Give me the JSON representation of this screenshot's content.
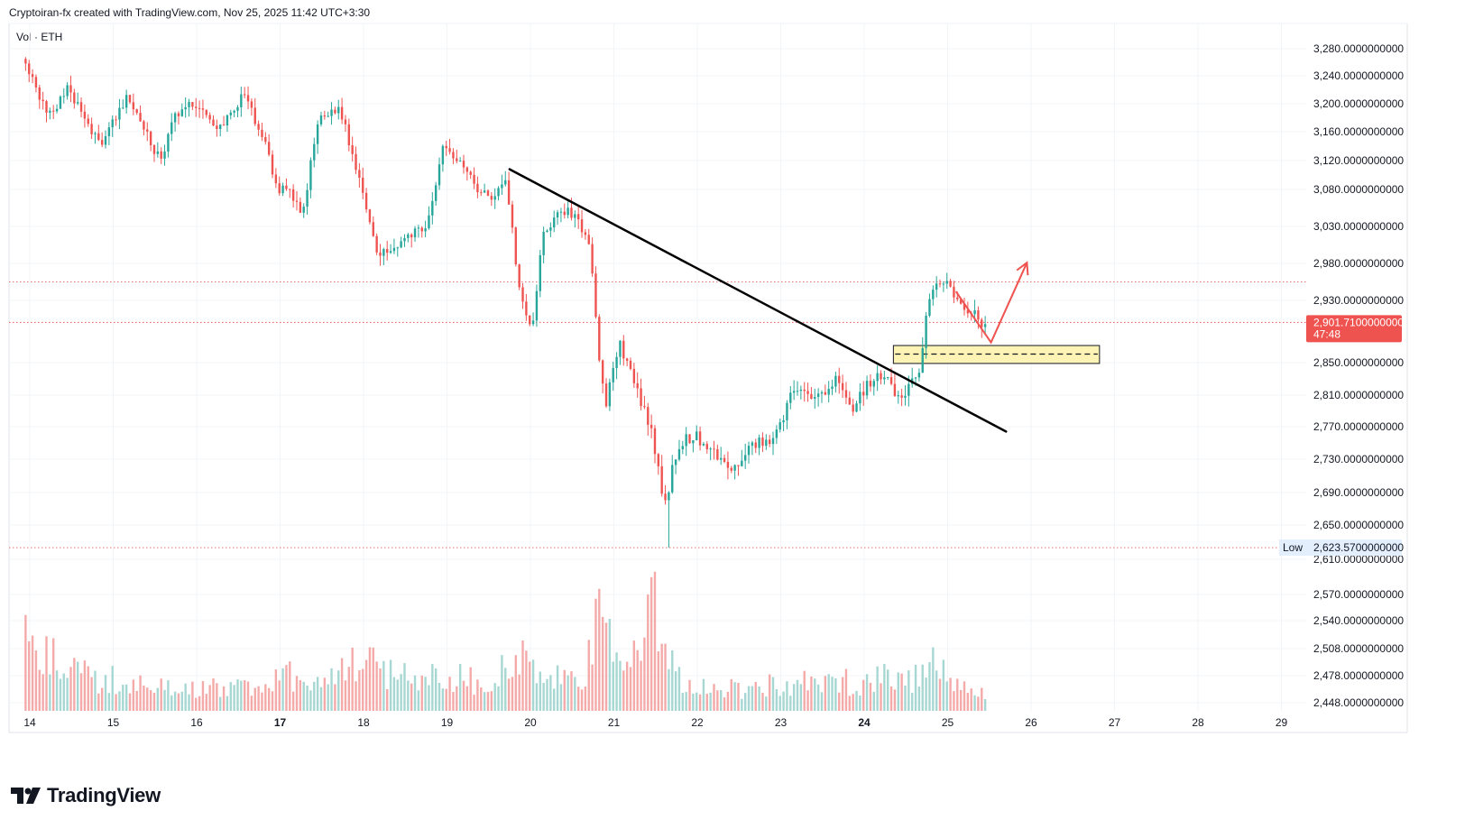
{
  "header": {
    "text": "Cryptoiran-fx created with TradingView.com, Nov 25, 2025 11:42 UTC+3:30"
  },
  "legend": {
    "text": "Vol · ETH"
  },
  "brand": {
    "name": "TradingView",
    "icon": "tradingview-logo-icon"
  },
  "colors": {
    "up": "#26a69a",
    "down": "#ef5350",
    "up_volume": "#a7d7d2",
    "down_volume": "#f4aaa8",
    "price_tag": "#ef5350",
    "zone_fill": "#fdf3b4",
    "trendline": "#000000",
    "arrow": "#ef5350"
  },
  "chart_data": {
    "type": "candlestick",
    "symbol": "ETH",
    "x_labels": [
      {
        "label": "14",
        "day": 14,
        "bold": false
      },
      {
        "label": "15",
        "day": 15,
        "bold": false
      },
      {
        "label": "16",
        "day": 16,
        "bold": false
      },
      {
        "label": "17",
        "day": 17,
        "bold": true
      },
      {
        "label": "18",
        "day": 18,
        "bold": false
      },
      {
        "label": "19",
        "day": 19,
        "bold": false
      },
      {
        "label": "20",
        "day": 20,
        "bold": false
      },
      {
        "label": "21",
        "day": 21,
        "bold": false
      },
      {
        "label": "22",
        "day": 22,
        "bold": false
      },
      {
        "label": "23",
        "day": 23,
        "bold": false
      },
      {
        "label": "24",
        "day": 24,
        "bold": true
      },
      {
        "label": "25",
        "day": 25,
        "bold": false
      },
      {
        "label": "26",
        "day": 26,
        "bold": false
      },
      {
        "label": "27",
        "day": 27,
        "bold": false
      },
      {
        "label": "28",
        "day": 28,
        "bold": false
      },
      {
        "label": "29",
        "day": 29,
        "bold": false
      }
    ],
    "y_ticks": [
      {
        "label": "3,280.0000000000",
        "value": 3280
      },
      {
        "label": "3,240.0000000000",
        "value": 3240
      },
      {
        "label": "3,200.0000000000",
        "value": 3200
      },
      {
        "label": "3,160.0000000000",
        "value": 3160
      },
      {
        "label": "3,120.0000000000",
        "value": 3120
      },
      {
        "label": "3,080.0000000000",
        "value": 3080
      },
      {
        "label": "3,030.0000000000",
        "value": 3030
      },
      {
        "label": "2,980.0000000000",
        "value": 2980
      },
      {
        "label": "2,930.0000000000",
        "value": 2930
      },
      {
        "label": "2,850.0000000000",
        "value": 2850
      },
      {
        "label": "2,810.0000000000",
        "value": 2810
      },
      {
        "label": "2,770.0000000000",
        "value": 2770
      },
      {
        "label": "2,730.0000000000",
        "value": 2730
      },
      {
        "label": "2,690.0000000000",
        "value": 2690
      },
      {
        "label": "2,650.0000000000",
        "value": 2650
      },
      {
        "label": "2,610.0000000000",
        "value": 2610
      },
      {
        "label": "2,570.0000000000",
        "value": 2570
      },
      {
        "label": "2,540.0000000000",
        "value": 2540
      },
      {
        "label": "2,508.0000000000",
        "value": 2508
      },
      {
        "label": "2,478.0000000000",
        "value": 2478
      },
      {
        "label": "2,448.0000000000",
        "value": 2448
      }
    ],
    "current_price": {
      "label": "2,901.7100000000",
      "value": 2901.71,
      "countdown": "47:48"
    },
    "low_marker": {
      "tag": "Low",
      "label": "2,623.5700000000",
      "value": 2623.57
    },
    "horizontal_levels": [
      2955,
      2901.71,
      2623.57
    ],
    "trendline": {
      "from": {
        "day": 19.75,
        "price": 3108
      },
      "to": {
        "day": 25.7,
        "price": 2764
      }
    },
    "zone": {
      "day_start": 24.35,
      "day_end": 26.82,
      "price_top": 2872,
      "price_bottom": 2849,
      "mid_price": 2861
    },
    "arrow": {
      "start": {
        "day": 25.1,
        "price": 2942
      },
      "via": {
        "day": 25.52,
        "price": 2876
      },
      "end": {
        "day": 25.95,
        "price": 2981
      }
    },
    "path_keypoints": [
      [
        13.95,
        3265
      ],
      [
        14.1,
        3225
      ],
      [
        14.3,
        3180
      ],
      [
        14.5,
        3222
      ],
      [
        14.7,
        3175
      ],
      [
        14.9,
        3135
      ],
      [
        15.0,
        3170
      ],
      [
        15.2,
        3208
      ],
      [
        15.4,
        3165
      ],
      [
        15.6,
        3120
      ],
      [
        15.8,
        3188
      ],
      [
        16.0,
        3200
      ],
      [
        16.3,
        3165
      ],
      [
        16.6,
        3212
      ],
      [
        16.85,
        3150
      ],
      [
        17.0,
        3080
      ],
      [
        17.15,
        3085
      ],
      [
        17.3,
        3040
      ],
      [
        17.5,
        3175
      ],
      [
        17.75,
        3195
      ],
      [
        18.0,
        3090
      ],
      [
        18.2,
        2990
      ],
      [
        18.5,
        3010
      ],
      [
        18.8,
        3030
      ],
      [
        19.0,
        3140
      ],
      [
        19.2,
        3115
      ],
      [
        19.4,
        3080
      ],
      [
        19.6,
        3065
      ],
      [
        19.75,
        3100
      ],
      [
        19.9,
        2950
      ],
      [
        20.05,
        2888
      ],
      [
        20.2,
        3020
      ],
      [
        20.4,
        3055
      ],
      [
        20.6,
        3040
      ],
      [
        20.75,
        3010
      ],
      [
        20.85,
        2865
      ],
      [
        20.95,
        2800
      ],
      [
        21.1,
        2875
      ],
      [
        21.3,
        2820
      ],
      [
        21.5,
        2760
      ],
      [
        21.65,
        2670
      ],
      [
        21.8,
        2745
      ],
      [
        22.0,
        2760
      ],
      [
        22.2,
        2745
      ],
      [
        22.45,
        2720
      ],
      [
        22.7,
        2745
      ],
      [
        23.0,
        2760
      ],
      [
        23.2,
        2820
      ],
      [
        23.45,
        2800
      ],
      [
        23.7,
        2828
      ],
      [
        23.9,
        2795
      ],
      [
        24.1,
        2825
      ],
      [
        24.3,
        2835
      ],
      [
        24.5,
        2800
      ],
      [
        24.7,
        2845
      ],
      [
        24.85,
        2950
      ],
      [
        25.0,
        2958
      ],
      [
        25.2,
        2930
      ],
      [
        25.45,
        2902
      ]
    ],
    "volume_profile_keypoints": [
      [
        13.95,
        0.55
      ],
      [
        14.5,
        0.3
      ],
      [
        15.0,
        0.25
      ],
      [
        15.5,
        0.18
      ],
      [
        16.0,
        0.2
      ],
      [
        16.5,
        0.18
      ],
      [
        17.0,
        0.35
      ],
      [
        17.5,
        0.22
      ],
      [
        18.0,
        0.4
      ],
      [
        18.5,
        0.28
      ],
      [
        19.0,
        0.3
      ],
      [
        19.5,
        0.22
      ],
      [
        19.8,
        0.45
      ],
      [
        20.2,
        0.25
      ],
      [
        20.6,
        0.25
      ],
      [
        20.85,
        0.75
      ],
      [
        21.1,
        0.3
      ],
      [
        21.45,
        0.9
      ],
      [
        21.6,
        0.45
      ],
      [
        21.8,
        0.3
      ],
      [
        22.0,
        0.2
      ],
      [
        22.5,
        0.18
      ],
      [
        23.0,
        0.22
      ],
      [
        23.5,
        0.22
      ],
      [
        24.0,
        0.25
      ],
      [
        24.3,
        0.3
      ],
      [
        24.6,
        0.25
      ],
      [
        24.85,
        0.6
      ],
      [
        25.0,
        0.2
      ],
      [
        25.45,
        0.12
      ]
    ]
  }
}
